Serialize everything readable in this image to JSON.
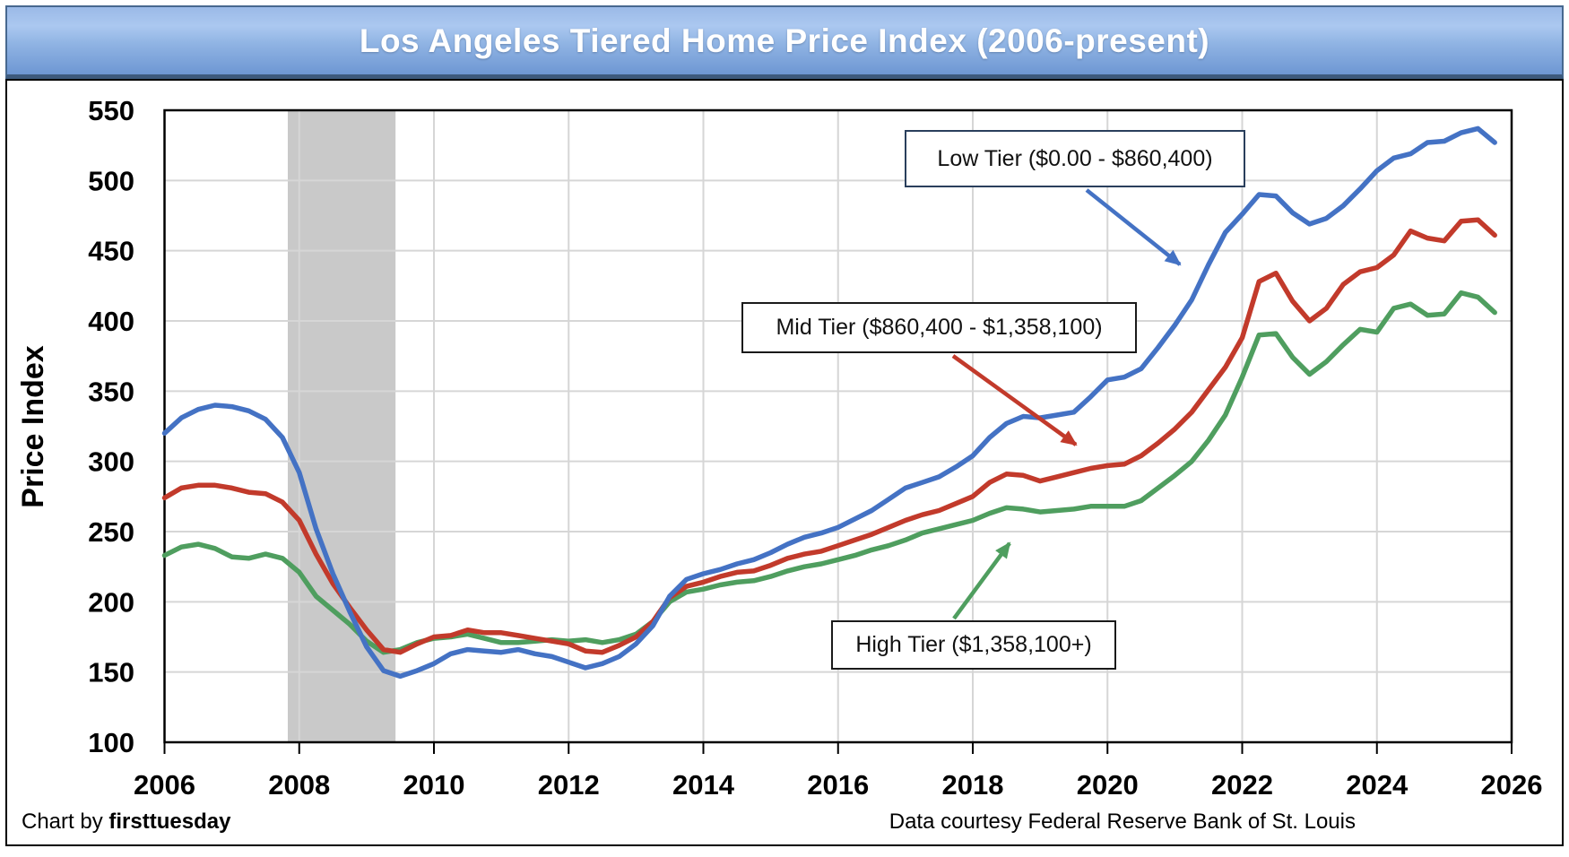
{
  "title": "Los Angeles Tiered Home Price Index (2006-present)",
  "footer": {
    "credit_prefix": "Chart by ",
    "credit_brand": "firsttuesday",
    "source": "Data courtesy Federal Reserve Bank of St. Louis"
  },
  "annotations": {
    "low_label": "Low Tier ($0.00 - $860,400)",
    "mid_label": "Mid Tier ($860,400 - $1,358,100)",
    "high_label": "High Tier ($1,358,100+)"
  },
  "colors": {
    "low": "#4472C4",
    "mid": "#C23A2B",
    "high": "#4F9E5F",
    "recession_band": "#C9C9C9",
    "gridline": "#D6D6D6",
    "axis": "#000000",
    "title_text": "#FFFFFF"
  },
  "chart_data": {
    "type": "line",
    "title": "Los Angeles Tiered Home Price Index (2006-present)",
    "xlabel": "",
    "ylabel": "Price Index",
    "xlim": [
      2006,
      2026
    ],
    "ylim": [
      100,
      550
    ],
    "grid": true,
    "x_ticks": [
      "2006",
      "2008",
      "2010",
      "2012",
      "2014",
      "2016",
      "2018",
      "2020",
      "2022",
      "2024",
      "2026"
    ],
    "y_ticks": [
      "100",
      "150",
      "200",
      "250",
      "300",
      "350",
      "400",
      "450",
      "500",
      "550"
    ],
    "recession_band": [
      2007.83,
      2009.43
    ],
    "x": [
      2006,
      2006.25,
      2006.5,
      2006.75,
      2007,
      2007.25,
      2007.5,
      2007.75,
      2008,
      2008.25,
      2008.5,
      2008.75,
      2009,
      2009.25,
      2009.5,
      2009.75,
      2010,
      2010.25,
      2010.5,
      2010.75,
      2011,
      2011.25,
      2011.5,
      2011.75,
      2012,
      2012.25,
      2012.5,
      2012.75,
      2013,
      2013.25,
      2013.5,
      2013.75,
      2014,
      2014.25,
      2014.5,
      2014.75,
      2015,
      2015.25,
      2015.5,
      2015.75,
      2016,
      2016.25,
      2016.5,
      2016.75,
      2017,
      2017.25,
      2017.5,
      2017.75,
      2018,
      2018.25,
      2018.5,
      2018.75,
      2019,
      2019.25,
      2019.5,
      2019.75,
      2020,
      2020.25,
      2020.5,
      2020.75,
      2021,
      2021.25,
      2021.5,
      2021.75,
      2022,
      2022.25,
      2022.5,
      2022.75,
      2023,
      2023.25,
      2023.5,
      2023.75,
      2024,
      2024.25,
      2024.5,
      2024.75,
      2025,
      2025.25,
      2025.5,
      2025.75
    ],
    "series": [
      {
        "name": "Low Tier ($0.00 - $860,400)",
        "color_key": "low",
        "values": [
          320,
          331,
          337,
          340,
          339,
          336,
          330,
          317,
          292,
          252,
          220,
          193,
          168,
          151,
          147,
          151,
          156,
          163,
          166,
          165,
          164,
          166,
          163,
          161,
          157,
          153,
          156,
          161,
          170,
          183,
          204,
          216,
          220,
          223,
          227,
          230,
          235,
          241,
          246,
          249,
          253,
          259,
          265,
          273,
          281,
          285,
          289,
          296,
          304,
          317,
          327,
          332,
          331,
          333,
          335,
          346,
          358,
          360,
          366,
          381,
          397,
          415,
          440,
          463,
          476,
          490,
          489,
          477,
          469,
          473,
          482,
          494,
          507,
          516,
          519,
          527,
          528,
          534,
          537,
          527
        ]
      },
      {
        "name": "Mid Tier ($860,400 - $1,358,100)",
        "color_key": "mid",
        "values": [
          274,
          281,
          283,
          283,
          281,
          278,
          277,
          271,
          258,
          234,
          213,
          196,
          180,
          166,
          164,
          170,
          175,
          176,
          180,
          178,
          178,
          176,
          174,
          172,
          170,
          165,
          164,
          169,
          175,
          186,
          203,
          211,
          214,
          218,
          221,
          222,
          226,
          231,
          234,
          236,
          240,
          244,
          248,
          253,
          258,
          262,
          265,
          270,
          275,
          285,
          291,
          290,
          286,
          289,
          292,
          295,
          297,
          298,
          304,
          313,
          323,
          335,
          351,
          367,
          388,
          428,
          434,
          414,
          400,
          409,
          426,
          435,
          438,
          447,
          464,
          459,
          457,
          471,
          472,
          461
        ]
      },
      {
        "name": "High Tier ($1,358,100+)",
        "color_key": "high",
        "values": [
          233,
          239,
          241,
          238,
          232,
          231,
          234,
          231,
          221,
          204,
          194,
          184,
          172,
          164,
          166,
          171,
          174,
          175,
          177,
          174,
          171,
          171,
          172,
          173,
          172,
          173,
          171,
          173,
          177,
          186,
          200,
          207,
          209,
          212,
          214,
          215,
          218,
          222,
          225,
          227,
          230,
          233,
          237,
          240,
          244,
          249,
          252,
          255,
          258,
          263,
          267,
          266,
          264,
          265,
          266,
          268,
          268,
          268,
          272,
          281,
          290,
          300,
          315,
          333,
          360,
          390,
          391,
          374,
          362,
          371,
          383,
          394,
          392,
          409,
          412,
          404,
          405,
          420,
          417,
          406
        ]
      }
    ]
  }
}
